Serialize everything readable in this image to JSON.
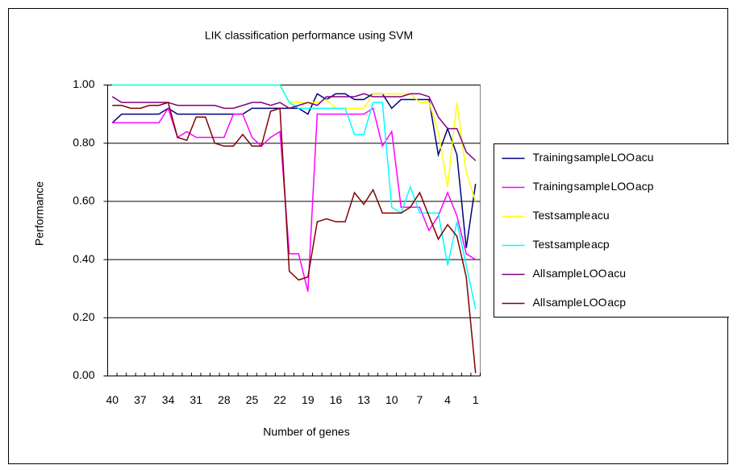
{
  "chart_data": {
    "type": "line",
    "title": "LIK classification performance using SVM",
    "x_label": "Number of genes",
    "y_label": "Performance",
    "categories": [
      "40",
      null,
      null,
      "37",
      null,
      null,
      "34",
      null,
      null,
      "31",
      null,
      null,
      "28",
      null,
      null,
      "25",
      null,
      null,
      "22",
      null,
      null,
      "19",
      null,
      null,
      "16",
      null,
      null,
      "13",
      null,
      null,
      "10",
      null,
      null,
      "7",
      null,
      null,
      "4",
      null,
      null,
      "1"
    ],
    "ylim": [
      0,
      1
    ],
    "yticks": [
      {
        "value": 0,
        "label": "0.00"
      },
      {
        "value": 0.2,
        "label": "0.20"
      },
      {
        "value": 0.4,
        "label": "0.40"
      },
      {
        "value": 0.6,
        "label": "0.60"
      },
      {
        "value": 0.8,
        "label": "0.80"
      },
      {
        "value": 1,
        "label": "1.00"
      }
    ],
    "grid": true,
    "legend": "right",
    "series": [
      {
        "name": "Training sample LOO acu",
        "color": "#000080",
        "values": [
          0.87,
          0.9,
          0.9,
          0.9,
          0.9,
          0.9,
          0.92,
          0.9,
          0.9,
          0.9,
          0.9,
          0.9,
          0.9,
          0.9,
          0.9,
          0.92,
          0.92,
          0.92,
          0.92,
          0.92,
          0.92,
          0.9,
          0.97,
          0.95,
          0.97,
          0.97,
          0.95,
          0.95,
          0.97,
          0.97,
          0.92,
          0.95,
          0.95,
          0.95,
          0.95,
          0.76,
          0.85,
          0.76,
          0.44,
          0.66
        ]
      },
      {
        "name": "Training sample LOO acp",
        "color": "#ff00ff",
        "values": [
          0.87,
          0.87,
          0.87,
          0.87,
          0.87,
          0.87,
          0.92,
          0.82,
          0.84,
          0.82,
          0.82,
          0.82,
          0.82,
          0.9,
          0.9,
          0.82,
          0.79,
          0.82,
          0.84,
          0.42,
          0.42,
          0.29,
          0.9,
          0.9,
          0.9,
          0.9,
          0.9,
          0.9,
          0.92,
          0.79,
          0.84,
          0.58,
          0.58,
          0.58,
          0.5,
          0.55,
          0.63,
          0.55,
          0.42,
          0.4
        ]
      },
      {
        "name": "Test sample acu",
        "color": "#ffff00",
        "values": [
          1,
          1,
          1,
          1,
          1,
          1,
          1,
          1,
          1,
          1,
          1,
          1,
          1,
          1,
          1,
          1,
          1,
          1,
          1,
          0.94,
          0.94,
          0.94,
          0.94,
          0.95,
          0.92,
          0.92,
          0.92,
          0.92,
          0.97,
          0.97,
          0.97,
          0.97,
          0.97,
          0.94,
          0.94,
          0.84,
          0.65,
          0.94,
          0.7,
          0.6
        ]
      },
      {
        "name": "Test sample acp",
        "color": "#00ffff",
        "values": [
          1,
          1,
          1,
          1,
          1,
          1,
          1,
          1,
          1,
          1,
          1,
          1,
          1,
          1,
          1,
          1,
          1,
          1,
          1,
          0.94,
          0.92,
          0.92,
          0.92,
          0.92,
          0.92,
          0.92,
          0.83,
          0.83,
          0.94,
          0.94,
          0.58,
          0.56,
          0.65,
          0.56,
          0.56,
          0.56,
          0.38,
          0.53,
          0.38,
          0.23
        ]
      },
      {
        "name": "All sample LOO acu",
        "color": "#800080",
        "values": [
          0.96,
          0.94,
          0.94,
          0.94,
          0.94,
          0.94,
          0.94,
          0.93,
          0.93,
          0.93,
          0.93,
          0.93,
          0.92,
          0.92,
          0.93,
          0.94,
          0.94,
          0.93,
          0.94,
          0.92,
          0.93,
          0.94,
          0.93,
          0.96,
          0.96,
          0.96,
          0.96,
          0.97,
          0.96,
          0.96,
          0.96,
          0.96,
          0.97,
          0.97,
          0.96,
          0.89,
          0.85,
          0.85,
          0.77,
          0.74
        ]
      },
      {
        "name": "All sample LOO acp",
        "color": "#800000",
        "values": [
          0.93,
          0.93,
          0.92,
          0.92,
          0.93,
          0.93,
          0.94,
          0.82,
          0.81,
          0.89,
          0.89,
          0.8,
          0.79,
          0.79,
          0.83,
          0.79,
          0.79,
          0.91,
          0.92,
          0.36,
          0.33,
          0.34,
          0.53,
          0.54,
          0.53,
          0.53,
          0.63,
          0.59,
          0.64,
          0.56,
          0.56,
          0.56,
          0.58,
          0.63,
          0.55,
          0.47,
          0.52,
          0.48,
          0.34,
          0.01
        ]
      }
    ]
  }
}
